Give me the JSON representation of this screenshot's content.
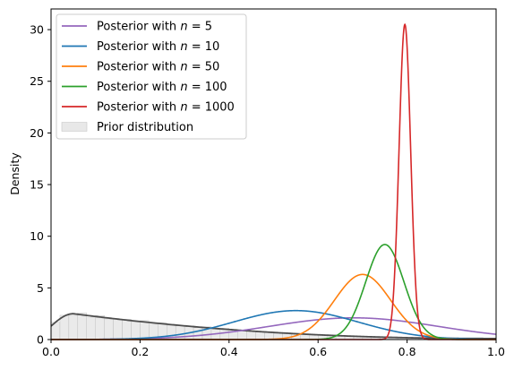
{
  "chart_data": {
    "type": "line",
    "title": "",
    "xlabel": "",
    "ylabel": "Density",
    "xlim": [
      0,
      1
    ],
    "ylim": [
      0,
      32
    ],
    "x_ticks": [
      "0.0",
      "0.2",
      "0.4",
      "0.6",
      "0.8",
      "1.0"
    ],
    "y_ticks": [
      "0",
      "5",
      "10",
      "15",
      "20",
      "25",
      "30"
    ],
    "grid": false,
    "legend_position": "top-left",
    "prior": {
      "name": "Prior distribution",
      "type": "histogram",
      "color": "#d9d9d9",
      "density_curve_color": "#4d4d4d",
      "approx_peak_x": 0.05,
      "approx_peak_y": 2.5,
      "approx_y_at_0": 1.3,
      "approx_y_at_1": 0.1
    },
    "series": [
      {
        "name": "Posterior with n = 5",
        "color": "#9467bd",
        "peak_x": 0.68,
        "peak_y": 2.1,
        "sd": 0.19
      },
      {
        "name": "Posterior with n = 10",
        "color": "#1f77b4",
        "peak_x": 0.55,
        "peak_y": 2.8,
        "sd": 0.14
      },
      {
        "name": "Posterior with n = 50",
        "color": "#ff7f0e",
        "peak_x": 0.7,
        "peak_y": 6.3,
        "sd": 0.063
      },
      {
        "name": "Posterior with n = 100",
        "color": "#2ca02c",
        "peak_x": 0.75,
        "peak_y": 9.2,
        "sd": 0.043
      },
      {
        "name": "Posterior with n = 1000",
        "color": "#d62728",
        "peak_x": 0.795,
        "peak_y": 30.5,
        "sd": 0.013
      }
    ]
  }
}
